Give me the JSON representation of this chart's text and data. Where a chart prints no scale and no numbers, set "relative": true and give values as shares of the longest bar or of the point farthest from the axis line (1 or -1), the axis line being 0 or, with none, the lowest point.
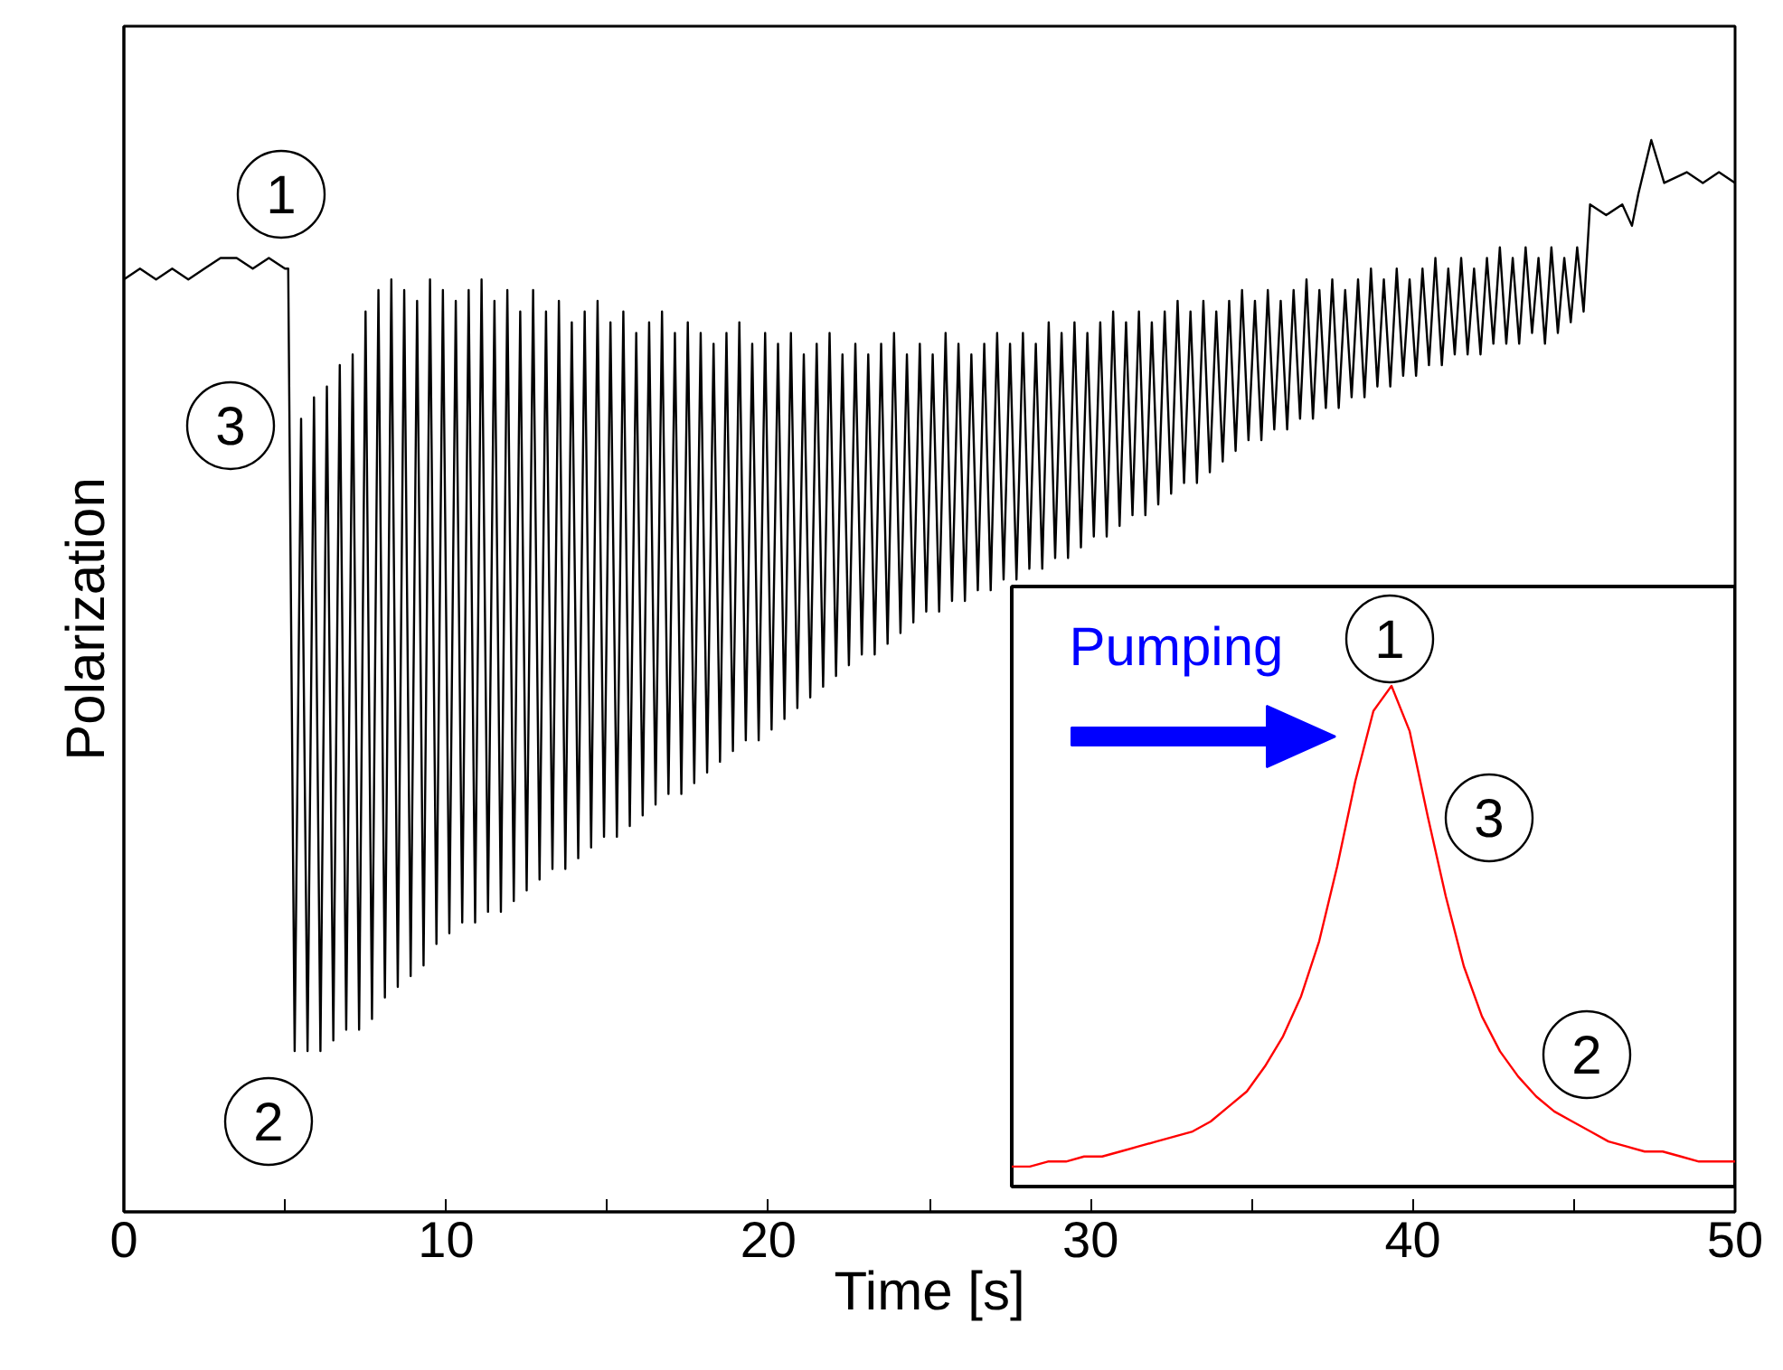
{
  "chart_data": [
    {
      "type": "line",
      "xlabel": "Time [s]",
      "ylabel": "Polarization",
      "relative": true,
      "tick_labels": "x",
      "xlim": [
        0,
        50
      ],
      "xticks": [
        0,
        {
          "value": 5,
          "label": null
        },
        10,
        {
          "value": 15,
          "label": null
        },
        20,
        {
          "value": 25,
          "label": null
        },
        30,
        {
          "value": 35,
          "label": null
        },
        40,
        {
          "value": 45,
          "label": null
        },
        50
      ],
      "annotations": [
        "1",
        "3",
        "2"
      ],
      "series": [
        {
          "color": "#000000",
          "x": [
            0,
            0.5,
            1,
            1.5,
            2,
            2.5,
            3,
            3.5,
            4,
            4.5,
            5,
            5.1,
            5.3,
            5.5,
            5.7,
            5.9,
            6.1,
            6.3,
            6.5,
            6.7,
            6.9,
            7.1,
            7.3,
            7.5,
            7.7,
            7.9,
            8.1,
            8.3,
            8.5,
            8.7,
            8.9,
            9.1,
            9.3,
            9.5,
            9.7,
            9.9,
            10.1,
            10.3,
            10.5,
            10.7,
            10.9,
            11.1,
            11.3,
            11.5,
            11.7,
            11.9,
            12.1,
            12.3,
            12.5,
            12.7,
            12.9,
            13.1,
            13.3,
            13.5,
            13.7,
            13.9,
            14.1,
            14.3,
            14.5,
            14.7,
            14.9,
            15.1,
            15.3,
            15.5,
            15.7,
            15.9,
            16.1,
            16.3,
            16.5,
            16.7,
            16.9,
            17.1,
            17.3,
            17.5,
            17.7,
            17.9,
            18.1,
            18.3,
            18.5,
            18.7,
            18.9,
            19.1,
            19.3,
            19.5,
            19.7,
            19.9,
            20.1,
            20.3,
            20.5,
            20.7,
            20.9,
            21.1,
            21.3,
            21.5,
            21.7,
            21.9,
            22.1,
            22.3,
            22.5,
            22.7,
            22.9,
            23.1,
            23.3,
            23.5,
            23.7,
            23.9,
            24.1,
            24.3,
            24.5,
            24.7,
            24.9,
            25.1,
            25.3,
            25.5,
            25.7,
            25.9,
            26.1,
            26.3,
            26.5,
            26.7,
            26.9,
            27.1,
            27.3,
            27.5,
            27.7,
            27.9,
            28.1,
            28.3,
            28.5,
            28.7,
            28.9,
            29.1,
            29.3,
            29.5,
            29.7,
            29.9,
            30.1,
            30.3,
            30.5,
            30.7,
            30.9,
            31.1,
            31.3,
            31.5,
            31.7,
            31.9,
            32.1,
            32.3,
            32.5,
            32.7,
            32.9,
            33.1,
            33.3,
            33.5,
            33.7,
            33.9,
            34.1,
            34.3,
            34.5,
            34.7,
            34.9,
            35.1,
            35.3,
            35.5,
            35.7,
            35.9,
            36.1,
            36.3,
            36.5,
            36.7,
            36.9,
            37.1,
            37.3,
            37.5,
            37.7,
            37.9,
            38.1,
            38.3,
            38.5,
            38.7,
            38.9,
            39.1,
            39.3,
            39.5,
            39.7,
            39.9,
            40.1,
            40.3,
            40.5,
            40.7,
            40.9,
            41.1,
            41.3,
            41.5,
            41.7,
            41.9,
            42.1,
            42.3,
            42.5,
            42.7,
            42.9,
            43.1,
            43.3,
            43.5,
            43.7,
            43.9,
            44.1,
            44.3,
            44.5,
            44.7,
            44.9,
            45.1,
            45.3,
            45.5,
            46,
            46.5,
            46.8,
            47,
            47.4,
            47.8,
            48.5,
            49,
            49.5,
            50
          ],
          "values": [
            0.87,
            0.88,
            0.87,
            0.88,
            0.87,
            0.88,
            0.89,
            0.89,
            0.88,
            0.89,
            0.88,
            0.88,
            0.15,
            0.74,
            0.15,
            0.76,
            0.15,
            0.77,
            0.16,
            0.79,
            0.17,
            0.8,
            0.17,
            0.84,
            0.18,
            0.86,
            0.2,
            0.87,
            0.21,
            0.86,
            0.22,
            0.85,
            0.23,
            0.87,
            0.25,
            0.86,
            0.26,
            0.85,
            0.27,
            0.86,
            0.27,
            0.87,
            0.28,
            0.85,
            0.28,
            0.86,
            0.29,
            0.84,
            0.3,
            0.86,
            0.31,
            0.84,
            0.32,
            0.85,
            0.32,
            0.83,
            0.33,
            0.84,
            0.34,
            0.85,
            0.35,
            0.83,
            0.35,
            0.84,
            0.36,
            0.82,
            0.37,
            0.83,
            0.38,
            0.84,
            0.39,
            0.82,
            0.39,
            0.83,
            0.4,
            0.82,
            0.41,
            0.81,
            0.42,
            0.82,
            0.43,
            0.83,
            0.44,
            0.81,
            0.44,
            0.82,
            0.45,
            0.81,
            0.46,
            0.82,
            0.47,
            0.8,
            0.48,
            0.81,
            0.49,
            0.82,
            0.5,
            0.8,
            0.51,
            0.81,
            0.52,
            0.8,
            0.52,
            0.81,
            0.53,
            0.82,
            0.54,
            0.8,
            0.55,
            0.81,
            0.56,
            0.8,
            0.56,
            0.82,
            0.57,
            0.81,
            0.57,
            0.8,
            0.58,
            0.81,
            0.58,
            0.82,
            0.59,
            0.81,
            0.59,
            0.82,
            0.6,
            0.81,
            0.6,
            0.83,
            0.61,
            0.82,
            0.61,
            0.83,
            0.62,
            0.82,
            0.63,
            0.83,
            0.63,
            0.84,
            0.64,
            0.83,
            0.65,
            0.84,
            0.65,
            0.83,
            0.66,
            0.84,
            0.67,
            0.85,
            0.68,
            0.84,
            0.68,
            0.85,
            0.69,
            0.84,
            0.7,
            0.85,
            0.71,
            0.86,
            0.72,
            0.85,
            0.72,
            0.86,
            0.73,
            0.85,
            0.73,
            0.86,
            0.74,
            0.87,
            0.74,
            0.86,
            0.75,
            0.87,
            0.75,
            0.86,
            0.76,
            0.87,
            0.76,
            0.88,
            0.77,
            0.87,
            0.77,
            0.88,
            0.78,
            0.87,
            0.78,
            0.88,
            0.79,
            0.89,
            0.79,
            0.88,
            0.8,
            0.89,
            0.8,
            0.88,
            0.8,
            0.89,
            0.81,
            0.9,
            0.81,
            0.89,
            0.81,
            0.9,
            0.82,
            0.89,
            0.81,
            0.9,
            0.82,
            0.89,
            0.83,
            0.9,
            0.84,
            0.94,
            0.93,
            0.94,
            0.92,
            0.95,
            1,
            0.96,
            0.97,
            0.96,
            0.97,
            0.96
          ]
        }
      ]
    },
    {
      "type": "line",
      "relative": true,
      "tick_labels": false,
      "categories": [
        null,
        null,
        null,
        null,
        null,
        null,
        null,
        null,
        null,
        null,
        null,
        null,
        null,
        null,
        null,
        null,
        null,
        null,
        null,
        null,
        null,
        null,
        null,
        null,
        null,
        null,
        null,
        null,
        null,
        null,
        null,
        null,
        null,
        null,
        null,
        null,
        null,
        null,
        null,
        null,
        null
      ],
      "annotations": [
        "Pumping",
        "1",
        "3",
        "2"
      ],
      "series": [
        {
          "color": "#ff0000",
          "values": [
            0.04,
            0.04,
            0.05,
            0.05,
            0.06,
            0.06,
            0.07,
            0.08,
            0.09,
            0.1,
            0.11,
            0.13,
            0.16,
            0.19,
            0.24,
            0.3,
            0.38,
            0.49,
            0.64,
            0.81,
            0.95,
            1,
            0.91,
            0.74,
            0.58,
            0.44,
            0.34,
            0.27,
            0.22,
            0.18,
            0.15,
            0.13,
            0.11,
            0.09,
            0.08,
            0.07,
            0.07,
            0.06,
            0.05,
            0.05,
            0.05
          ]
        }
      ]
    }
  ]
}
